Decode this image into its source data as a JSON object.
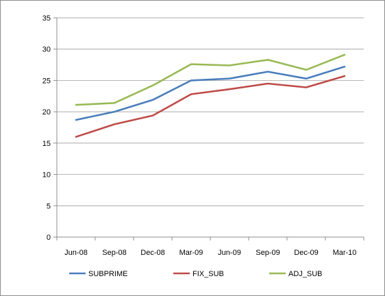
{
  "chart_data": {
    "type": "line",
    "title": "",
    "xlabel": "",
    "ylabel": "",
    "categories": [
      "Jun-08",
      "Sep-08",
      "Dec-08",
      "Mar-09",
      "Jun-09",
      "Sep-09",
      "Dec-09",
      "Mar-10"
    ],
    "ylim": [
      0,
      35
    ],
    "yticks": [
      0,
      5,
      10,
      15,
      20,
      25,
      30,
      35
    ],
    "grid": true,
    "legend_position": "bottom",
    "series": [
      {
        "name": "SUBPRIME",
        "color": "#4a7ebb",
        "values": [
          18.7,
          20.0,
          21.9,
          25.0,
          25.3,
          26.4,
          25.3,
          27.2
        ]
      },
      {
        "name": "FIX_SUB",
        "color": "#be4b48",
        "values": [
          16.0,
          18.0,
          19.4,
          22.8,
          23.6,
          24.5,
          23.9,
          25.7
        ]
      },
      {
        "name": "ADJ_SUB",
        "color": "#98b954",
        "values": [
          21.1,
          21.4,
          24.2,
          27.6,
          27.4,
          28.3,
          26.7,
          29.1
        ]
      }
    ]
  }
}
